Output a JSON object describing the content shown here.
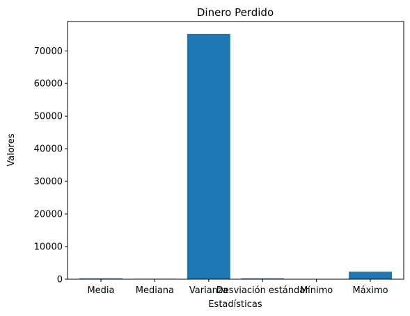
{
  "chart_data": {
    "type": "bar",
    "title": "Dinero Perdido",
    "xlabel": "Estadísticas",
    "ylabel": "Valores",
    "categories": [
      "Media",
      "Mediana",
      "Varianza",
      "Desviación estándar",
      "Mínimo",
      "Máximo"
    ],
    "values": [
      270,
      150,
      75200,
      270,
      5,
      2300
    ],
    "ylim": [
      0,
      79000
    ],
    "yticks": [
      0,
      10000,
      20000,
      30000,
      40000,
      50000,
      60000,
      70000
    ],
    "ytick_labels": [
      "0",
      "10000",
      "20000",
      "30000",
      "40000",
      "50000",
      "60000",
      "70000"
    ],
    "grid": false,
    "bar_color": "#1f77b4"
  }
}
